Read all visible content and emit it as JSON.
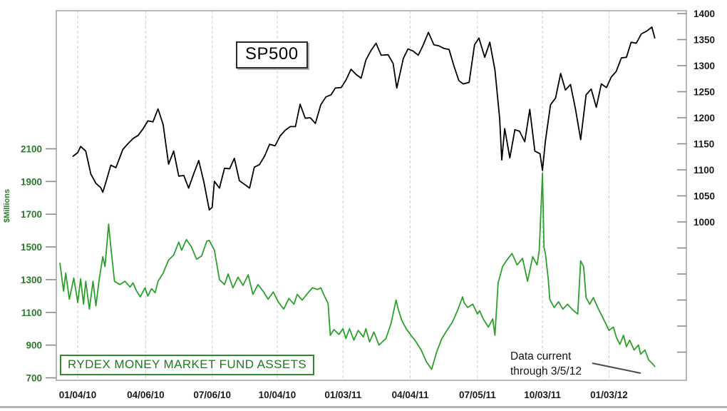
{
  "page": {
    "background": "#ffffff",
    "bottom_strip_color": "#b3b3b3"
  },
  "chart_data": {
    "type": "line",
    "title": "",
    "grid": {
      "vertical": true,
      "style": "dashed",
      "color": "#cccccc"
    },
    "x_axis": {
      "tick_labels": [
        "01/04/10",
        "04/06/10",
        "07/06/10",
        "10/04/10",
        "01/03/11",
        "04/04/11",
        "07/05/11",
        "10/03/11",
        "01/03/12"
      ],
      "label_color": "#1a1a1a"
    },
    "left_axis": {
      "label": "$Millions",
      "color": "#2d7a2d",
      "range": [
        700,
        2100
      ],
      "tick_values": [
        700,
        900,
        1100,
        1300,
        1500,
        1700,
        1900,
        2100
      ]
    },
    "right_axis": {
      "color": "#1a1a1a",
      "range": [
        700,
        1405
      ],
      "tick_values": [
        1000,
        1050,
        1100,
        1150,
        1200,
        1250,
        1300,
        1350,
        1400
      ],
      "unlabeled_tick_values": [
        750,
        800,
        850,
        900,
        950
      ]
    },
    "annotations": {
      "sp500_label": "SP500",
      "rydex_label": "RYDEX MONEY MARKET FUND ASSETS",
      "data_current_line1": "Data current",
      "data_current_line2": "through 3/5/12",
      "millions_label": "$Millions"
    },
    "series": [
      {
        "name": "SP500",
        "axis": "right",
        "color": "#000000",
        "points": [
          [
            "12/28/09",
            1126
          ],
          [
            "1/4/10",
            1133
          ],
          [
            "1/8/10",
            1145
          ],
          [
            "1/15/10",
            1136
          ],
          [
            "1/22/10",
            1092
          ],
          [
            "1/29/10",
            1074
          ],
          [
            "2/5/10",
            1066
          ],
          [
            "2/8/10",
            1057
          ],
          [
            "2/12/10",
            1075
          ],
          [
            "2/19/10",
            1109
          ],
          [
            "2/26/10",
            1104
          ],
          [
            "3/5/10",
            1139
          ],
          [
            "3/12/10",
            1150
          ],
          [
            "3/19/10",
            1160
          ],
          [
            "3/26/10",
            1166
          ],
          [
            "4/2/10",
            1178
          ],
          [
            "4/9/10",
            1194
          ],
          [
            "4/16/10",
            1192
          ],
          [
            "4/23/10",
            1217
          ],
          [
            "4/30/10",
            1187
          ],
          [
            "5/7/10",
            1111
          ],
          [
            "5/14/10",
            1136
          ],
          [
            "5/21/10",
            1088
          ],
          [
            "5/28/10",
            1089
          ],
          [
            "6/4/10",
            1065
          ],
          [
            "6/11/10",
            1092
          ],
          [
            "6/18/10",
            1118
          ],
          [
            "6/25/10",
            1077
          ],
          [
            "7/2/10",
            1023
          ],
          [
            "7/6/10",
            1028
          ],
          [
            "7/9/10",
            1078
          ],
          [
            "7/16/10",
            1065
          ],
          [
            "7/23/10",
            1103
          ],
          [
            "7/30/10",
            1102
          ],
          [
            "8/6/10",
            1122
          ],
          [
            "8/13/10",
            1079
          ],
          [
            "8/20/10",
            1072
          ],
          [
            "8/27/10",
            1065
          ],
          [
            "9/3/10",
            1105
          ],
          [
            "9/10/10",
            1110
          ],
          [
            "9/17/10",
            1126
          ],
          [
            "9/24/10",
            1149
          ],
          [
            "10/1/10",
            1146
          ],
          [
            "10/8/10",
            1165
          ],
          [
            "10/15/10",
            1176
          ],
          [
            "10/22/10",
            1183
          ],
          [
            "10/29/10",
            1183
          ],
          [
            "11/5/10",
            1226
          ],
          [
            "11/12/10",
            1199
          ],
          [
            "11/19/10",
            1200
          ],
          [
            "11/26/10",
            1189
          ],
          [
            "12/3/10",
            1225
          ],
          [
            "12/10/10",
            1240
          ],
          [
            "12/17/10",
            1244
          ],
          [
            "12/23/10",
            1257
          ],
          [
            "12/31/10",
            1258
          ],
          [
            "1/7/11",
            1272
          ],
          [
            "1/14/11",
            1293
          ],
          [
            "1/21/11",
            1283
          ],
          [
            "1/28/11",
            1276
          ],
          [
            "2/4/11",
            1311
          ],
          [
            "2/11/11",
            1329
          ],
          [
            "2/18/11",
            1343
          ],
          [
            "2/25/11",
            1320
          ],
          [
            "3/4/11",
            1321
          ],
          [
            "3/11/11",
            1304
          ],
          [
            "3/16/11",
            1257
          ],
          [
            "3/25/11",
            1314
          ],
          [
            "4/1/11",
            1332
          ],
          [
            "4/8/11",
            1328
          ],
          [
            "4/15/11",
            1320
          ],
          [
            "4/21/11",
            1337
          ],
          [
            "4/29/11",
            1364
          ],
          [
            "5/6/11",
            1340
          ],
          [
            "5/13/11",
            1338
          ],
          [
            "5/20/11",
            1333
          ],
          [
            "5/27/11",
            1331
          ],
          [
            "6/3/11",
            1300
          ],
          [
            "6/10/11",
            1271
          ],
          [
            "6/16/11",
            1265
          ],
          [
            "6/24/11",
            1268
          ],
          [
            "7/1/11",
            1340
          ],
          [
            "7/7/11",
            1353
          ],
          [
            "7/15/11",
            1316
          ],
          [
            "7/22/11",
            1345
          ],
          [
            "7/29/11",
            1292
          ],
          [
            "8/5/11",
            1199
          ],
          [
            "8/8/11",
            1119
          ],
          [
            "8/12/11",
            1179
          ],
          [
            "8/19/11",
            1123
          ],
          [
            "8/26/11",
            1177
          ],
          [
            "9/2/11",
            1174
          ],
          [
            "9/9/11",
            1154
          ],
          [
            "9/16/11",
            1216
          ],
          [
            "9/23/11",
            1136
          ],
          [
            "9/30/11",
            1131
          ],
          [
            "10/3/11",
            1099
          ],
          [
            "10/7/11",
            1155
          ],
          [
            "10/14/11",
            1225
          ],
          [
            "10/21/11",
            1238
          ],
          [
            "10/28/11",
            1285
          ],
          [
            "11/4/11",
            1253
          ],
          [
            "11/11/11",
            1264
          ],
          [
            "11/18/11",
            1216
          ],
          [
            "11/25/11",
            1158
          ],
          [
            "12/2/11",
            1244
          ],
          [
            "12/9/11",
            1255
          ],
          [
            "12/16/11",
            1220
          ],
          [
            "12/23/11",
            1265
          ],
          [
            "12/30/11",
            1258
          ],
          [
            "1/6/12",
            1278
          ],
          [
            "1/13/12",
            1289
          ],
          [
            "1/20/12",
            1315
          ],
          [
            "1/27/12",
            1316
          ],
          [
            "2/3/12",
            1345
          ],
          [
            "2/10/12",
            1343
          ],
          [
            "2/17/12",
            1361
          ],
          [
            "2/24/12",
            1366
          ],
          [
            "3/1/12",
            1374
          ],
          [
            "3/5/12",
            1353
          ]
        ]
      },
      {
        "name": "RYDEX MONEY MARKET FUND ASSETS",
        "axis": "left",
        "color": "#2ca02c",
        "points": [
          [
            "12/10/09",
            1400
          ],
          [
            "12/15/09",
            1230
          ],
          [
            "12/18/09",
            1340
          ],
          [
            "12/23/09",
            1180
          ],
          [
            "12/29/09",
            1310
          ],
          [
            "1/4/10",
            1160
          ],
          [
            "1/8/10",
            1305
          ],
          [
            "1/12/10",
            1150
          ],
          [
            "1/15/10",
            1290
          ],
          [
            "1/20/10",
            1120
          ],
          [
            "1/25/10",
            1290
          ],
          [
            "1/29/10",
            1140
          ],
          [
            "2/3/10",
            1300
          ],
          [
            "2/8/10",
            1440
          ],
          [
            "2/11/10",
            1380
          ],
          [
            "2/16/10",
            1640
          ],
          [
            "2/19/10",
            1500
          ],
          [
            "2/24/10",
            1290
          ],
          [
            "3/1/10",
            1270
          ],
          [
            "3/8/10",
            1290
          ],
          [
            "3/15/10",
            1255
          ],
          [
            "3/19/10",
            1280
          ],
          [
            "3/24/10",
            1230
          ],
          [
            "3/29/10",
            1195
          ],
          [
            "4/5/10",
            1250
          ],
          [
            "4/9/10",
            1200
          ],
          [
            "4/14/10",
            1245
          ],
          [
            "4/19/10",
            1220
          ],
          [
            "4/23/10",
            1290
          ],
          [
            "4/30/10",
            1340
          ],
          [
            "5/7/10",
            1420
          ],
          [
            "5/14/10",
            1450
          ],
          [
            "5/21/10",
            1530
          ],
          [
            "5/25/10",
            1480
          ],
          [
            "6/1/10",
            1545
          ],
          [
            "6/8/10",
            1500
          ],
          [
            "6/15/10",
            1425
          ],
          [
            "6/22/10",
            1445
          ],
          [
            "6/29/10",
            1535
          ],
          [
            "7/2/10",
            1540
          ],
          [
            "7/9/10",
            1480
          ],
          [
            "7/16/10",
            1300
          ],
          [
            "7/23/10",
            1270
          ],
          [
            "7/28/10",
            1335
          ],
          [
            "8/4/10",
            1250
          ],
          [
            "8/11/10",
            1315
          ],
          [
            "8/18/10",
            1265
          ],
          [
            "8/25/10",
            1330
          ],
          [
            "9/1/10",
            1210
          ],
          [
            "9/8/10",
            1270
          ],
          [
            "9/15/10",
            1230
          ],
          [
            "9/22/10",
            1180
          ],
          [
            "9/29/10",
            1225
          ],
          [
            "10/6/10",
            1160
          ],
          [
            "10/13/10",
            1120
          ],
          [
            "10/20/10",
            1185
          ],
          [
            "10/27/10",
            1150
          ],
          [
            "11/1/10",
            1210
          ],
          [
            "11/8/10",
            1175
          ],
          [
            "11/15/10",
            1215
          ],
          [
            "11/22/10",
            1250
          ],
          [
            "11/29/10",
            1240
          ],
          [
            "12/3/10",
            1250
          ],
          [
            "12/8/10",
            1200
          ],
          [
            "12/13/10",
            1155
          ],
          [
            "12/16/10",
            960
          ],
          [
            "12/21/10",
            995
          ],
          [
            "12/28/10",
            965
          ],
          [
            "1/3/11",
            1000
          ],
          [
            "1/7/11",
            940
          ],
          [
            "1/12/11",
            1000
          ],
          [
            "1/18/11",
            930
          ],
          [
            "1/24/11",
            990
          ],
          [
            "1/31/11",
            950
          ],
          [
            "2/4/11",
            1000
          ],
          [
            "2/9/11",
            920
          ],
          [
            "2/15/11",
            980
          ],
          [
            "2/22/11",
            900
          ],
          [
            "3/1/11",
            940
          ],
          [
            "3/8/11",
            1030
          ],
          [
            "3/15/11",
            1175
          ],
          [
            "3/18/11",
            1120
          ],
          [
            "3/23/11",
            1050
          ],
          [
            "3/29/11",
            1000
          ],
          [
            "4/5/11",
            960
          ],
          [
            "4/12/11",
            920
          ],
          [
            "4/19/11",
            870
          ],
          [
            "4/26/11",
            800
          ],
          [
            "5/3/11",
            752
          ],
          [
            "5/10/11",
            860
          ],
          [
            "5/17/11",
            940
          ],
          [
            "5/24/11",
            990
          ],
          [
            "6/1/11",
            1040
          ],
          [
            "6/8/11",
            1110
          ],
          [
            "6/15/11",
            1195
          ],
          [
            "6/17/11",
            1160
          ],
          [
            "6/22/11",
            1130
          ],
          [
            "6/29/11",
            1150
          ],
          [
            "7/5/11",
            1090
          ],
          [
            "7/8/11",
            1110
          ],
          [
            "7/13/11",
            1060
          ],
          [
            "7/20/11",
            1010
          ],
          [
            "7/26/11",
            1060
          ],
          [
            "7/29/11",
            960
          ],
          [
            "8/3/11",
            1280
          ],
          [
            "8/9/11",
            1380
          ],
          [
            "8/15/11",
            1420
          ],
          [
            "8/22/11",
            1460
          ],
          [
            "8/29/11",
            1390
          ],
          [
            "9/6/11",
            1430
          ],
          [
            "9/13/11",
            1290
          ],
          [
            "9/20/11",
            1440
          ],
          [
            "9/26/11",
            1390
          ],
          [
            "9/29/11",
            1480
          ],
          [
            "10/3/11",
            1950
          ],
          [
            "10/5/11",
            1500
          ],
          [
            "10/7/11",
            1460
          ],
          [
            "10/11/11",
            1300
          ],
          [
            "10/13/11",
            1180
          ],
          [
            "10/19/11",
            1130
          ],
          [
            "10/25/11",
            1165
          ],
          [
            "10/31/11",
            1120
          ],
          [
            "11/7/11",
            1150
          ],
          [
            "11/14/11",
            1115
          ],
          [
            "11/21/11",
            1090
          ],
          [
            "11/23/11",
            1250
          ],
          [
            "11/25/11",
            1415
          ],
          [
            "11/29/11",
            1380
          ],
          [
            "12/2/11",
            1190
          ],
          [
            "12/7/11",
            1150
          ],
          [
            "12/12/11",
            1190
          ],
          [
            "12/19/11",
            1120
          ],
          [
            "12/27/11",
            1050
          ],
          [
            "1/3/12",
            990
          ],
          [
            "1/9/12",
            1010
          ],
          [
            "1/13/12",
            950
          ],
          [
            "1/18/12",
            905
          ],
          [
            "1/23/12",
            960
          ],
          [
            "1/27/12",
            890
          ],
          [
            "2/1/12",
            930
          ],
          [
            "2/7/12",
            870
          ],
          [
            "2/13/12",
            900
          ],
          [
            "2/16/12",
            845
          ],
          [
            "2/22/12",
            870
          ],
          [
            "2/27/12",
            810
          ],
          [
            "3/1/12",
            790
          ],
          [
            "3/5/12",
            770
          ]
        ]
      }
    ]
  }
}
